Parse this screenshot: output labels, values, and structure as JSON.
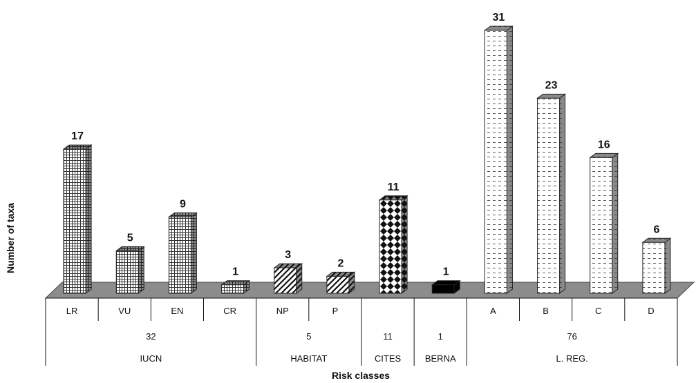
{
  "chart_data": {
    "type": "bar",
    "ylabel": "Number of taxa",
    "xlabel": "Risk classes",
    "categories": [
      "LR",
      "VU",
      "EN",
      "CR",
      "NP",
      "P",
      "",
      "",
      "A",
      "B",
      "C",
      "D"
    ],
    "values": [
      17,
      5,
      9,
      1,
      3,
      2,
      11,
      1,
      31,
      23,
      16,
      6
    ],
    "value_labels": [
      "17",
      "5",
      "9",
      "1",
      "3",
      "2",
      "11",
      "1",
      "31",
      "23",
      "16",
      "6"
    ],
    "groups": [
      {
        "name": "IUCN",
        "total": "32",
        "start": 0,
        "end": 3
      },
      {
        "name": "HABITAT",
        "total": "5",
        "start": 4,
        "end": 5
      },
      {
        "name": "CITES",
        "total": "11",
        "start": 6,
        "end": 6
      },
      {
        "name": "BERNA",
        "total": "1",
        "start": 7,
        "end": 7
      },
      {
        "name": "L. REG.",
        "total": "76",
        "start": 8,
        "end": 11
      }
    ],
    "fill_patterns": [
      "grid",
      "grid",
      "grid",
      "grid",
      "hatch",
      "hatch",
      "diamond",
      "solid",
      "dash",
      "dash",
      "dash",
      "dash"
    ],
    "grid": false,
    "legend": "none",
    "ylim": [
      0,
      31
    ]
  }
}
